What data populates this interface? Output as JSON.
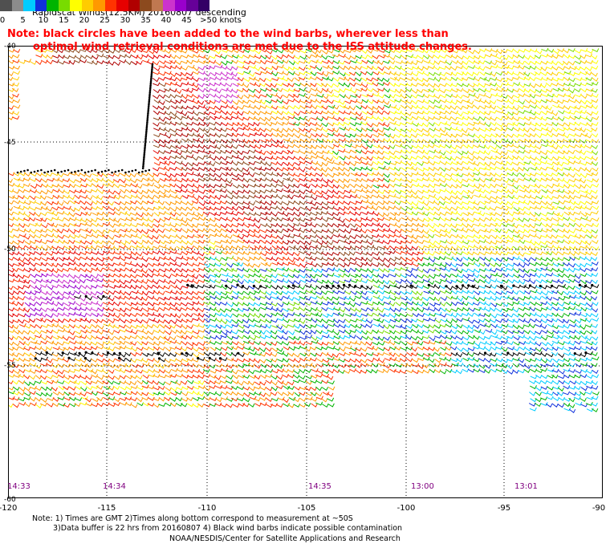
{
  "title": "Rapidscat Winds(12.5KM) 20160807 descending",
  "note_line1": "Note: black circles have been added to the wind barbs, wherever less than",
  "note_line2": "optimal wind retrieval conditions are met due to the ISS attitude changes.",
  "legend": {
    "colors": [
      "#505050",
      "#8c8c8c",
      "#00ccff",
      "#1030dc",
      "#00b400",
      "#78dc00",
      "#ffff00",
      "#ffcc00",
      "#ff9900",
      "#ff3300",
      "#e60000",
      "#b00000",
      "#8c4a1e",
      "#c07850",
      "#cc33cc",
      "#9900cc",
      "#660099",
      "#330066"
    ],
    "labels": [
      "0",
      "5",
      "10",
      "15",
      "20",
      "25",
      "30",
      "35",
      "40",
      "45",
      ">50 knots"
    ]
  },
  "lat_labels": [
    "-40",
    "-45",
    "-50",
    "-55",
    "-60"
  ],
  "lon_labels": [
    "-120",
    "-115",
    "-110",
    "-105",
    "-100",
    "-95",
    "-90"
  ],
  "time_labels": [
    "14:33",
    "14:34",
    "14:35",
    "13:00",
    "13:01"
  ],
  "footer": {
    "line1": "Note: 1) Times are GMT 2)Times along bottom correspond to measurement at ~50S",
    "line2": "3)Data buffer is 22 hrs from 20160807 4) Black wind barbs indicate possible contamination",
    "credit": "NOAA/NESDIS/Center for Satellite Applications and Research"
  }
}
